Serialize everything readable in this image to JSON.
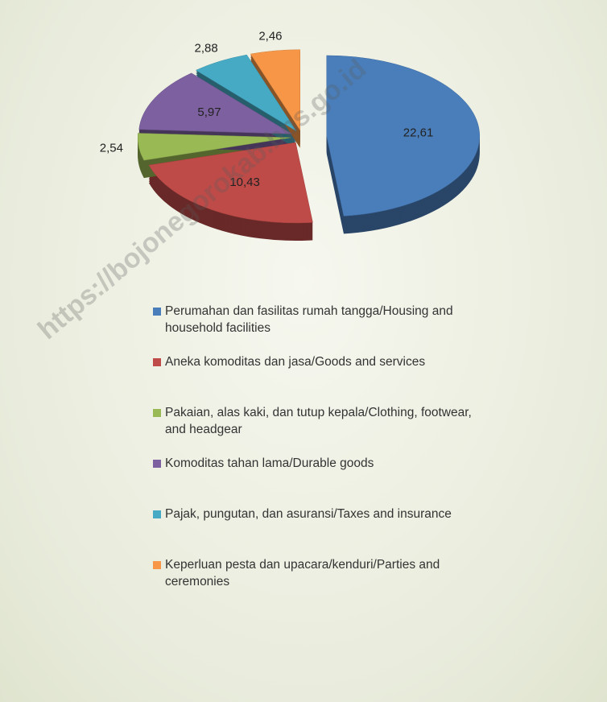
{
  "chart_data": {
    "type": "pie",
    "categories": [
      "Perumahan dan fasilitas rumah tangga/Housing and household facilities",
      "Aneka komoditas dan jasa/Goods and services",
      "Pakaian, alas kaki, dan tutup kepala/Clothing, footwear, and headgear",
      "Komoditas tahan lama/Durable goods",
      "Pajak, pungutan, dan asuransi/Taxes and insurance",
      "Keperluan pesta dan upacara/kenduri/Parties and ceremonies"
    ],
    "values": [
      22.61,
      10.43,
      2.54,
      5.97,
      2.88,
      2.46
    ],
    "value_labels": [
      "22,61",
      "10,43",
      "2,54",
      "5,97",
      "2,88",
      "2,46"
    ],
    "colors": [
      "#4a7ebb",
      "#be4b48",
      "#98b954",
      "#7d60a0",
      "#46aac5",
      "#f79646"
    ],
    "legend": "bottom"
  },
  "watermark": "https://bojonegorokab.bps.go.id"
}
